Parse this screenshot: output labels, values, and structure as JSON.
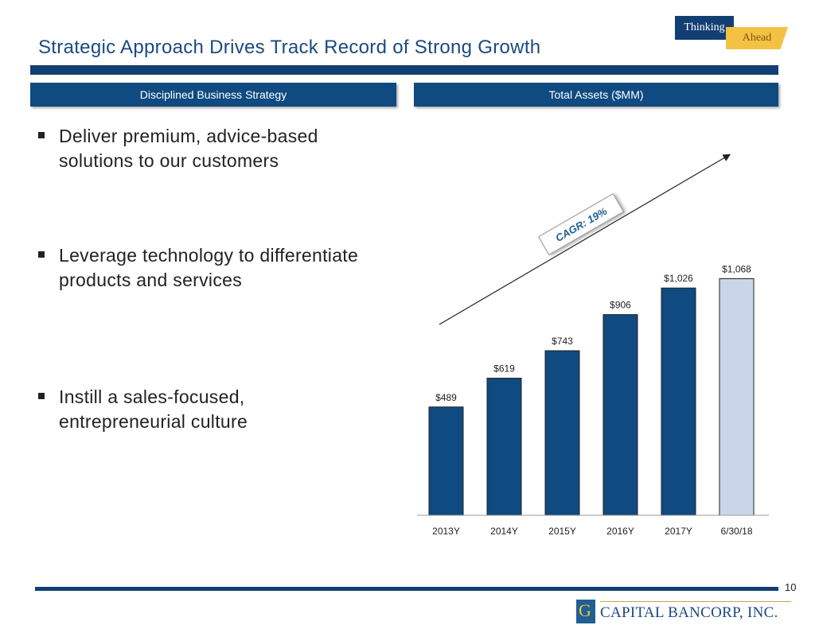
{
  "header": {
    "title": "Strategic Approach Drives Track Record of Strong Growth",
    "brand_top": "Thinking",
    "brand_bottom": "Ahead"
  },
  "sections": {
    "left_header": "Disciplined Business Strategy",
    "right_header": "Total Assets ($MM)"
  },
  "bullets": [
    "Deliver premium, advice-based solutions to our customers",
    "Leverage technology to differentiate products and services",
    "Instill a sales-focused, entrepreneurial culture"
  ],
  "chart_data": {
    "type": "bar",
    "title": "Total Assets ($MM)",
    "categories": [
      "2013Y",
      "2014Y",
      "2015Y",
      "2016Y",
      "2017Y",
      "6/30/18"
    ],
    "values": [
      489,
      619,
      743,
      906,
      1026,
      1068
    ],
    "value_labels": [
      "$489",
      "$619",
      "$743",
      "$906",
      "$1,026",
      "$1,068"
    ],
    "ylim": [
      0,
      1400
    ],
    "colors": [
      "#0f4a80",
      "#0f4a80",
      "#0f4a80",
      "#0f4a80",
      "#0f4a80",
      "#c9d6ea"
    ],
    "annotation": "CAGR: 19%"
  },
  "footer": {
    "page_number": "10",
    "company": "CAPITAL BANCORP, INC.",
    "logo_glyph": "G"
  }
}
